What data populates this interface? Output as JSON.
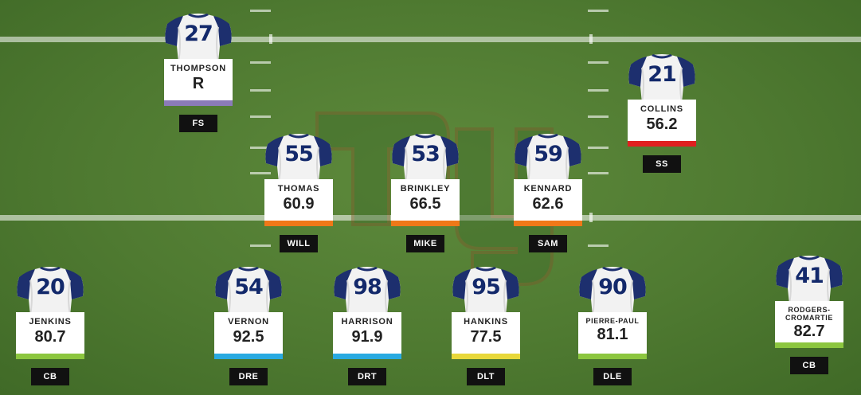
{
  "team_logo": "ny-logo",
  "players": [
    {
      "id": "fs",
      "number": "27",
      "name": "THOMPSON",
      "grade": "R",
      "position": "FS",
      "bar_color": "#8b7bb8"
    },
    {
      "id": "ss",
      "number": "21",
      "name": "COLLINS",
      "grade": "56.2",
      "position": "SS",
      "bar_color": "#e02020"
    },
    {
      "id": "will",
      "number": "55",
      "name": "THOMAS",
      "grade": "60.9",
      "position": "WILL",
      "bar_color": "#f07818"
    },
    {
      "id": "mike",
      "number": "53",
      "name": "BRINKLEY",
      "grade": "66.5",
      "position": "MIKE",
      "bar_color": "#f07818"
    },
    {
      "id": "sam",
      "number": "59",
      "name": "KENNARD",
      "grade": "62.6",
      "position": "SAM",
      "bar_color": "#f07818"
    },
    {
      "id": "cb-left",
      "number": "20",
      "name": "JENKINS",
      "grade": "80.7",
      "position": "CB",
      "bar_color": "#8cc63f"
    },
    {
      "id": "dre",
      "number": "54",
      "name": "VERNON",
      "grade": "92.5",
      "position": "DRE",
      "bar_color": "#29aae1"
    },
    {
      "id": "drt",
      "number": "98",
      "name": "HARRISON",
      "grade": "91.9",
      "position": "DRT",
      "bar_color": "#29aae1"
    },
    {
      "id": "dlt",
      "number": "95",
      "name": "HANKINS",
      "grade": "77.5",
      "position": "DLT",
      "bar_color": "#e8d83a"
    },
    {
      "id": "dle",
      "number": "90",
      "name": "PIERRE-PAUL",
      "grade": "81.1",
      "position": "DLE",
      "bar_color": "#8cc63f"
    },
    {
      "id": "cb-right",
      "number": "41",
      "name": "RODGERS-\nCROMARTIE",
      "grade": "82.7",
      "position": "CB",
      "bar_color": "#8cc63f"
    }
  ]
}
